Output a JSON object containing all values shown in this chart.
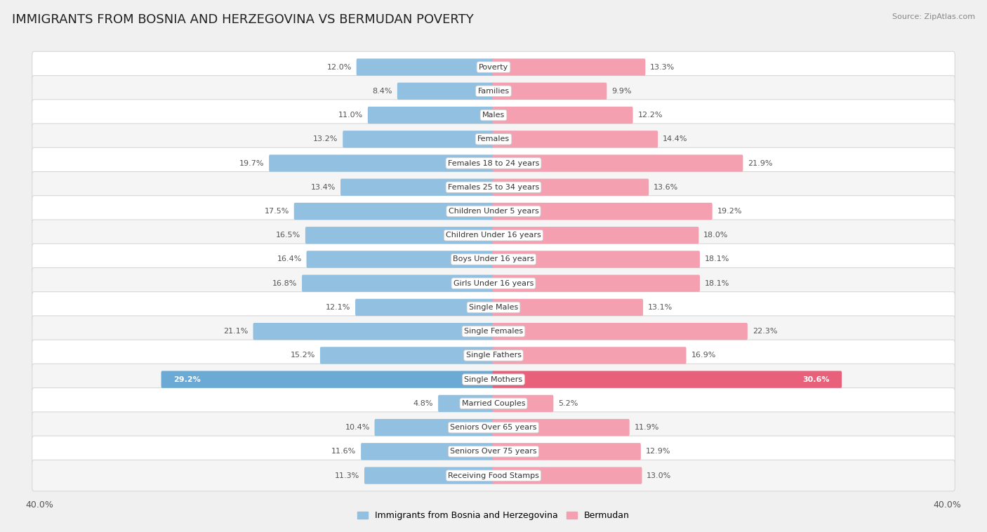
{
  "title": "IMMIGRANTS FROM BOSNIA AND HERZEGOVINA VS BERMUDAN POVERTY",
  "source": "Source: ZipAtlas.com",
  "categories": [
    "Poverty",
    "Families",
    "Males",
    "Females",
    "Females 18 to 24 years",
    "Females 25 to 34 years",
    "Children Under 5 years",
    "Children Under 16 years",
    "Boys Under 16 years",
    "Girls Under 16 years",
    "Single Males",
    "Single Females",
    "Single Fathers",
    "Single Mothers",
    "Married Couples",
    "Seniors Over 65 years",
    "Seniors Over 75 years",
    "Receiving Food Stamps"
  ],
  "left_values": [
    12.0,
    8.4,
    11.0,
    13.2,
    19.7,
    13.4,
    17.5,
    16.5,
    16.4,
    16.8,
    12.1,
    21.1,
    15.2,
    29.2,
    4.8,
    10.4,
    11.6,
    11.3
  ],
  "right_values": [
    13.3,
    9.9,
    12.2,
    14.4,
    21.9,
    13.6,
    19.2,
    18.0,
    18.1,
    18.1,
    13.1,
    22.3,
    16.9,
    30.6,
    5.2,
    11.9,
    12.9,
    13.0
  ],
  "left_color": "#92C0E0",
  "right_color": "#F4A0B0",
  "left_label": "Immigrants from Bosnia and Herzegovina",
  "right_label": "Bermudan",
  "axis_max": 40.0,
  "row_bg_light": "#f5f5f5",
  "row_bg_white": "#ffffff",
  "title_fontsize": 13,
  "bar_height": 0.55,
  "highlight_row": 13,
  "highlight_left_color": "#6AAAD4",
  "highlight_right_color": "#E8607A",
  "label_font_size": 8.0,
  "value_font_size": 8.0
}
